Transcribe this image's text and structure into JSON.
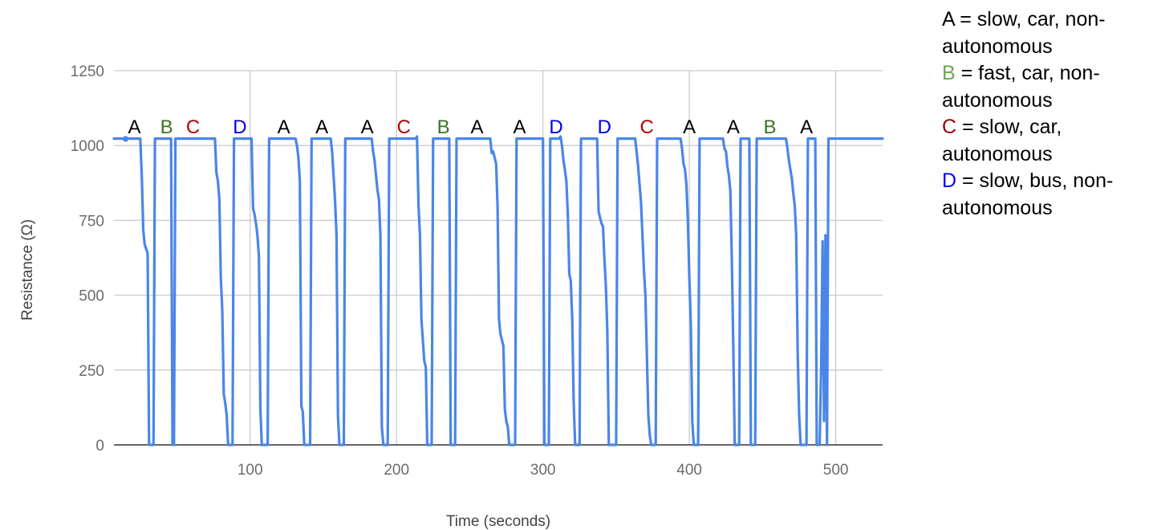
{
  "chart_data": {
    "type": "line",
    "xlabel": "Time (seconds)",
    "ylabel": "Resistance (Ω)",
    "xlim": [
      7,
      532
    ],
    "ylim": [
      0,
      1250
    ],
    "x_ticks": [
      100,
      200,
      300,
      400,
      500
    ],
    "y_ticks": [
      0,
      250,
      500,
      750,
      1000,
      1250
    ],
    "grid": true,
    "series_color": "#4a86e8",
    "series": [
      {
        "points": [
          [
            7,
            1023
          ],
          [
            25,
            1023
          ],
          [
            26,
            900
          ],
          [
            27,
            720
          ],
          [
            28,
            670
          ],
          [
            29,
            655
          ],
          [
            30,
            640
          ],
          [
            31,
            0
          ],
          [
            34,
            0
          ],
          [
            35,
            1023
          ],
          [
            46,
            1023
          ],
          [
            47,
            0
          ],
          [
            48,
            0
          ],
          [
            49,
            1023
          ],
          [
            76,
            1023
          ],
          [
            77,
            910
          ],
          [
            78,
            880
          ],
          [
            79,
            820
          ],
          [
            80,
            560
          ],
          [
            81,
            450
          ],
          [
            82,
            170
          ],
          [
            83,
            140
          ],
          [
            84,
            100
          ],
          [
            85,
            0
          ],
          [
            88,
            0
          ],
          [
            89,
            1023
          ],
          [
            101,
            1023
          ],
          [
            102,
            790
          ],
          [
            103,
            770
          ],
          [
            104,
            740
          ],
          [
            105,
            700
          ],
          [
            106,
            630
          ],
          [
            107,
            120
          ],
          [
            108,
            0
          ],
          [
            112,
            0
          ],
          [
            113,
            1023
          ],
          [
            131,
            1023
          ],
          [
            132,
            1000
          ],
          [
            133,
            960
          ],
          [
            134,
            880
          ],
          [
            135,
            130
          ],
          [
            136,
            110
          ],
          [
            137,
            0
          ],
          [
            141,
            0
          ],
          [
            142,
            1023
          ],
          [
            155,
            1023
          ],
          [
            156,
            980
          ],
          [
            157,
            900
          ],
          [
            158,
            820
          ],
          [
            159,
            700
          ],
          [
            160,
            100
          ],
          [
            161,
            0
          ],
          [
            164,
            0
          ],
          [
            165,
            1023
          ],
          [
            183,
            1023
          ],
          [
            184,
            980
          ],
          [
            185,
            950
          ],
          [
            186,
            900
          ],
          [
            187,
            850
          ],
          [
            188,
            820
          ],
          [
            189,
            700
          ],
          [
            190,
            60
          ],
          [
            191,
            0
          ],
          [
            194,
            0
          ],
          [
            195,
            1023
          ],
          [
            213,
            1023
          ],
          [
            214,
            1030
          ],
          [
            215,
            800
          ],
          [
            216,
            700
          ],
          [
            217,
            420
          ],
          [
            218,
            350
          ],
          [
            219,
            280
          ],
          [
            220,
            260
          ],
          [
            221,
            0
          ],
          [
            224,
            0
          ],
          [
            225,
            1023
          ],
          [
            236,
            1023
          ],
          [
            237,
            0
          ],
          [
            240,
            0
          ],
          [
            241,
            1023
          ],
          [
            264,
            1023
          ],
          [
            265,
            975
          ],
          [
            266,
            980
          ],
          [
            267,
            960
          ],
          [
            268,
            940
          ],
          [
            269,
            800
          ],
          [
            270,
            420
          ],
          [
            271,
            370
          ],
          [
            272,
            350
          ],
          [
            273,
            330
          ],
          [
            274,
            120
          ],
          [
            275,
            80
          ],
          [
            276,
            60
          ],
          [
            277,
            0
          ],
          [
            281,
            0
          ],
          [
            282,
            1023
          ],
          [
            300,
            1023
          ],
          [
            301,
            0
          ],
          [
            304,
            0
          ],
          [
            305,
            1023
          ],
          [
            311,
            1023
          ],
          [
            312,
            1030
          ],
          [
            313,
            1000
          ],
          [
            314,
            950
          ],
          [
            315,
            920
          ],
          [
            316,
            880
          ],
          [
            317,
            770
          ],
          [
            318,
            570
          ],
          [
            319,
            550
          ],
          [
            320,
            420
          ],
          [
            321,
            140
          ],
          [
            322,
            0
          ],
          [
            325,
            0
          ],
          [
            326,
            1023
          ],
          [
            337,
            1023
          ],
          [
            338,
            780
          ],
          [
            339,
            760
          ],
          [
            340,
            740
          ],
          [
            341,
            730
          ],
          [
            342,
            620
          ],
          [
            343,
            530
          ],
          [
            344,
            380
          ],
          [
            345,
            0
          ],
          [
            350,
            0
          ],
          [
            351,
            1023
          ],
          [
            363,
            1023
          ],
          [
            364,
            980
          ],
          [
            365,
            930
          ],
          [
            366,
            870
          ],
          [
            367,
            810
          ],
          [
            368,
            700
          ],
          [
            369,
            580
          ],
          [
            370,
            500
          ],
          [
            371,
            300
          ],
          [
            372,
            100
          ],
          [
            373,
            30
          ],
          [
            374,
            0
          ],
          [
            377,
            0
          ],
          [
            378,
            1023
          ],
          [
            394,
            1023
          ],
          [
            395,
            990
          ],
          [
            396,
            940
          ],
          [
            397,
            920
          ],
          [
            398,
            870
          ],
          [
            399,
            750
          ],
          [
            400,
            560
          ],
          [
            401,
            400
          ],
          [
            402,
            80
          ],
          [
            403,
            0
          ],
          [
            406,
            0
          ],
          [
            407,
            1023
          ],
          [
            423,
            1023
          ],
          [
            424,
            990
          ],
          [
            425,
            980
          ],
          [
            426,
            930
          ],
          [
            427,
            900
          ],
          [
            428,
            850
          ],
          [
            429,
            630
          ],
          [
            430,
            330
          ],
          [
            431,
            0
          ],
          [
            434,
            0
          ],
          [
            435,
            1023
          ],
          [
            441,
            1023
          ],
          [
            442,
            0
          ],
          [
            445,
            0
          ],
          [
            446,
            1023
          ],
          [
            466,
            1023
          ],
          [
            467,
            990
          ],
          [
            468,
            950
          ],
          [
            469,
            920
          ],
          [
            470,
            890
          ],
          [
            471,
            840
          ],
          [
            472,
            800
          ],
          [
            473,
            700
          ],
          [
            474,
            300
          ],
          [
            475,
            100
          ],
          [
            476,
            0
          ],
          [
            480,
            0
          ],
          [
            481,
            1023
          ],
          [
            486,
            1023
          ],
          [
            487,
            0
          ],
          [
            489,
            0
          ],
          [
            490,
            260
          ],
          [
            491,
            680
          ],
          [
            492,
            80
          ],
          [
            493,
            700
          ],
          [
            494,
            0
          ],
          [
            495,
            1023
          ],
          [
            532,
            1023
          ]
        ]
      }
    ],
    "start_marker": [
      15,
      1022
    ],
    "annotations": [
      {
        "text": "A",
        "x": 21,
        "color": "#000000"
      },
      {
        "text": "B",
        "x": 43,
        "color": "#38761d"
      },
      {
        "text": "C",
        "x": 61,
        "color": "#b30000"
      },
      {
        "text": "D",
        "x": 93,
        "color": "#0000e0"
      },
      {
        "text": "A",
        "x": 123,
        "color": "#000000"
      },
      {
        "text": "A",
        "x": 149,
        "color": "#000000"
      },
      {
        "text": "A",
        "x": 180,
        "color": "#000000"
      },
      {
        "text": "C",
        "x": 205,
        "color": "#b30000"
      },
      {
        "text": "B",
        "x": 232,
        "color": "#38761d"
      },
      {
        "text": "A",
        "x": 255,
        "color": "#000000"
      },
      {
        "text": "A",
        "x": 284,
        "color": "#000000"
      },
      {
        "text": "D",
        "x": 309,
        "color": "#0000e0"
      },
      {
        "text": "D",
        "x": 342,
        "color": "#0000e0"
      },
      {
        "text": "C",
        "x": 371,
        "color": "#b30000"
      },
      {
        "text": "A",
        "x": 400,
        "color": "#000000"
      },
      {
        "text": "A",
        "x": 430,
        "color": "#000000"
      },
      {
        "text": "B",
        "x": 455,
        "color": "#38761d"
      },
      {
        "text": "A",
        "x": 480,
        "color": "#000000"
      }
    ]
  },
  "legend": [
    {
      "key": "A",
      "key_color": "#000000",
      "text": " = slow, car, non-autonomous"
    },
    {
      "key": "B",
      "key_color": "#6aa84f",
      "text": " = fast, car, non-autonomous"
    },
    {
      "key": "C",
      "key_color": "#990000",
      "text": " = slow, car, autonomous"
    },
    {
      "key": "D",
      "key_color": "#0000ff",
      "text": " = slow, bus, non-autonomous"
    }
  ]
}
